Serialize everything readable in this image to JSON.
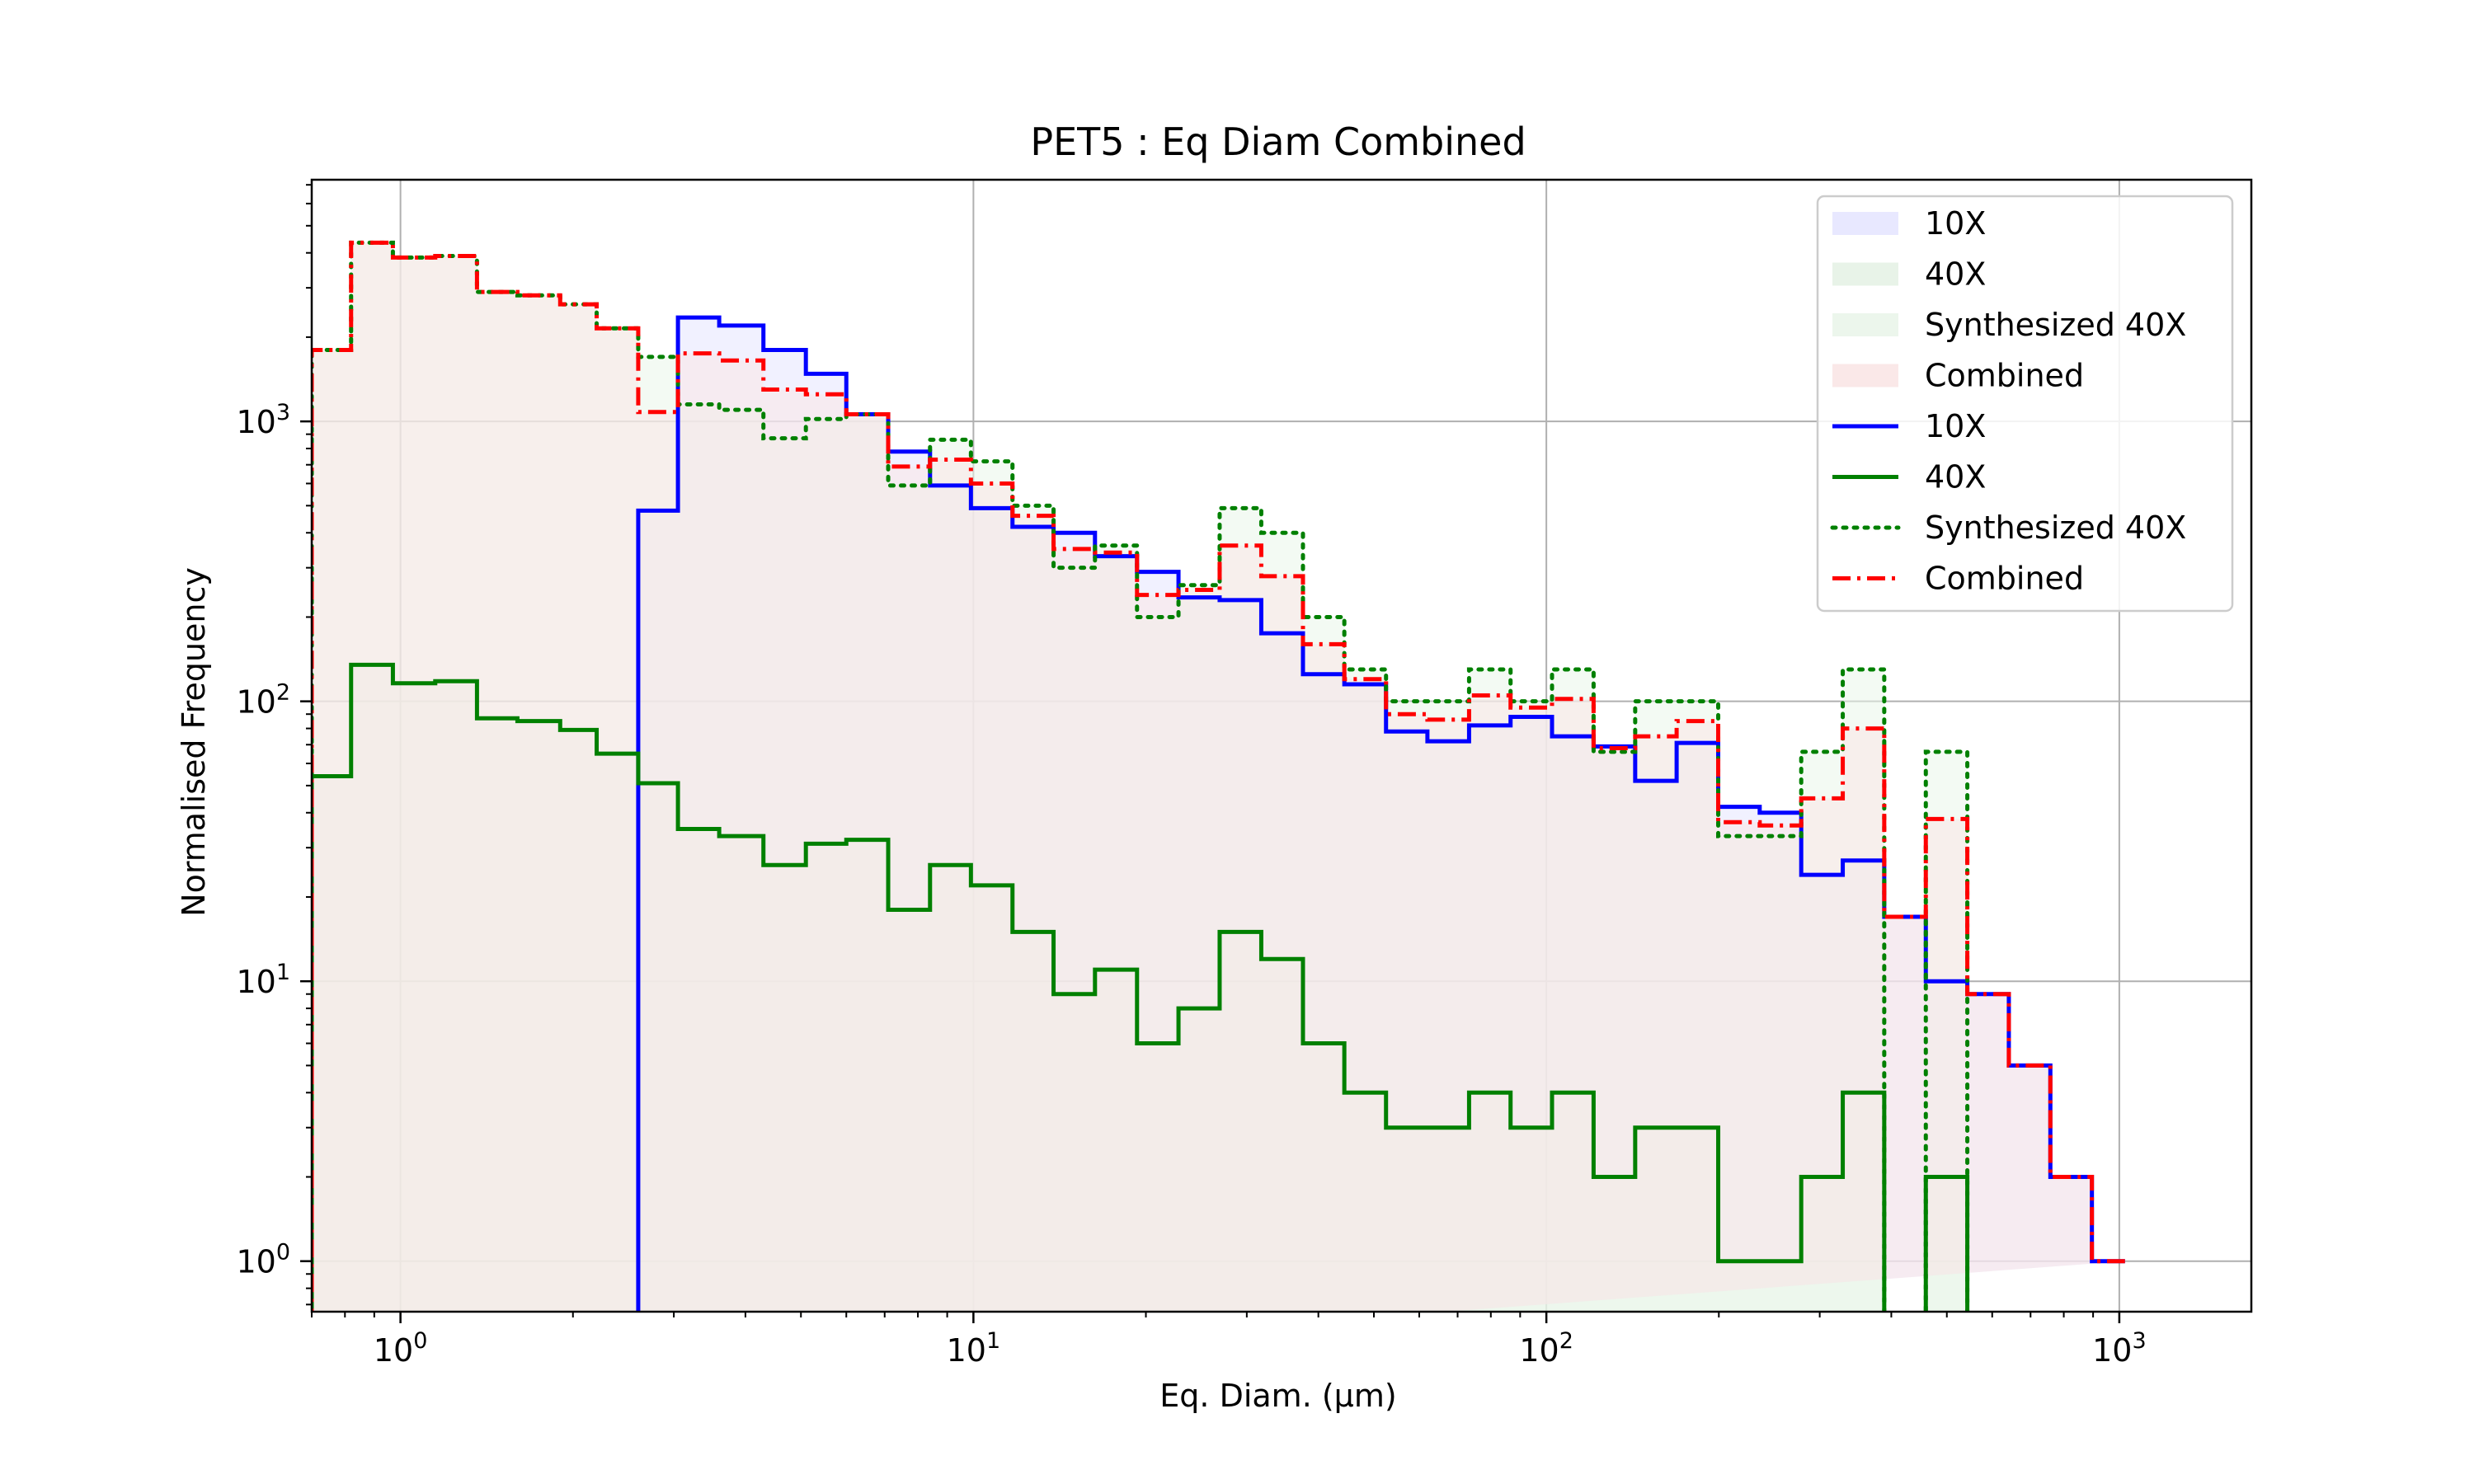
{
  "chart_data": {
    "type": "histogram-step",
    "title": "PET5 : Eq Diam Combined",
    "xlabel": "Eq. Diam. (μm)",
    "ylabel": "Normalised Frequency",
    "xscale": "log",
    "yscale": "log",
    "xlim": [
      0.7,
      1700
    ],
    "ylim": [
      0.66,
      7300
    ],
    "grid": true,
    "legend_position": "upper right",
    "x_ticks": [
      {
        "value": 1,
        "label_base": "10",
        "label_exp": "0"
      },
      {
        "value": 10,
        "label_base": "10",
        "label_exp": "1"
      },
      {
        "value": 100,
        "label_base": "10",
        "label_exp": "2"
      },
      {
        "value": 1000,
        "label_base": "10",
        "label_exp": "3"
      }
    ],
    "y_ticks": [
      {
        "value": 1,
        "label_base": "10",
        "label_exp": "0"
      },
      {
        "value": 10,
        "label_base": "10",
        "label_exp": "1"
      },
      {
        "value": 100,
        "label_base": "10",
        "label_exp": "2"
      },
      {
        "value": 1000,
        "label_base": "10",
        "label_exp": "3"
      }
    ],
    "bin_edges": [
      0.7,
      0.82,
      0.97,
      1.15,
      1.36,
      1.6,
      1.9,
      2.2,
      2.6,
      3.05,
      3.6,
      4.3,
      5.1,
      6.0,
      7.1,
      8.4,
      9.9,
      11.7,
      13.8,
      16.3,
      19.3,
      22.8,
      26.9,
      31.8,
      37.6,
      44.4,
      52.5,
      62.0,
      73.3,
      86.6,
      102.3,
      120.9,
      142.9,
      168.8,
      199.5,
      235.7,
      278.5,
      329.1,
      388.8,
      459.5,
      542.9,
      641.5,
      758.0,
      895.7,
      1023.0
    ],
    "series": [
      {
        "name": "10X",
        "color": "#0000ff",
        "line": "solid",
        "fill": "#e6e6ff",
        "values": [
          0,
          0,
          0,
          0,
          0,
          0,
          0,
          0,
          480,
          2350,
          2200,
          1800,
          1480,
          1060,
          780,
          590,
          490,
          420,
          400,
          330,
          290,
          235,
          230,
          175,
          125,
          115,
          78,
          72,
          82,
          88,
          75,
          69,
          52,
          71,
          42,
          40,
          24,
          27,
          17,
          10,
          9,
          5,
          2,
          1,
          1
        ]
      },
      {
        "name": "40X",
        "color": "#008000",
        "line": "solid",
        "fill": "#e6f2e6",
        "values": [
          54,
          135,
          116,
          118,
          87,
          85,
          79,
          65,
          51,
          35,
          33,
          26,
          31,
          32,
          18,
          26,
          22,
          15,
          9,
          11,
          6,
          8,
          15,
          12,
          6,
          4,
          3,
          3,
          4,
          3,
          4,
          2,
          3,
          3,
          1,
          1,
          2,
          4,
          0,
          2,
          0,
          0,
          0,
          0,
          0
        ]
      },
      {
        "name": "Synthesized 40X",
        "color": "#008000",
        "line": "dotted",
        "fill": "#eaf5ea",
        "values": [
          1800,
          4350,
          3850,
          3900,
          2900,
          2820,
          2620,
          2150,
          1700,
          1150,
          1100,
          870,
          1020,
          1060,
          590,
          860,
          720,
          500,
          300,
          360,
          200,
          260,
          490,
          400,
          200,
          130,
          100,
          100,
          130,
          100,
          130,
          66,
          100,
          100,
          33,
          33,
          66,
          130,
          0,
          66,
          0,
          0,
          0,
          0,
          0
        ]
      },
      {
        "name": "Combined",
        "color": "#ff0000",
        "line": "dashdot",
        "fill": "#f9e6e6",
        "values": [
          1800,
          4350,
          3850,
          3900,
          2900,
          2820,
          2620,
          2150,
          1080,
          1750,
          1650,
          1300,
          1250,
          1060,
          690,
          730,
          600,
          460,
          350,
          340,
          240,
          250,
          360,
          280,
          160,
          120,
          90,
          86,
          105,
          95,
          102,
          68,
          75,
          85,
          37,
          36,
          45,
          80,
          17,
          38,
          9,
          5,
          2,
          1,
          1
        ]
      }
    ],
    "legend": [
      {
        "label": "10X",
        "kind": "patch",
        "color": "#0000ff"
      },
      {
        "label": "40X",
        "kind": "patch",
        "color": "#008000"
      },
      {
        "label": "Synthesized 40X",
        "kind": "patch",
        "color": "#008000"
      },
      {
        "label": "Combined",
        "kind": "patch",
        "color": "#ff0000"
      },
      {
        "label": "10X",
        "kind": "line",
        "color": "#0000ff",
        "line": "solid"
      },
      {
        "label": "40X",
        "kind": "line",
        "color": "#008000",
        "line": "solid"
      },
      {
        "label": "Synthesized 40X",
        "kind": "line",
        "color": "#008000",
        "line": "dotted"
      },
      {
        "label": "Combined",
        "kind": "line",
        "color": "#ff0000",
        "line": "dashdot"
      }
    ]
  }
}
